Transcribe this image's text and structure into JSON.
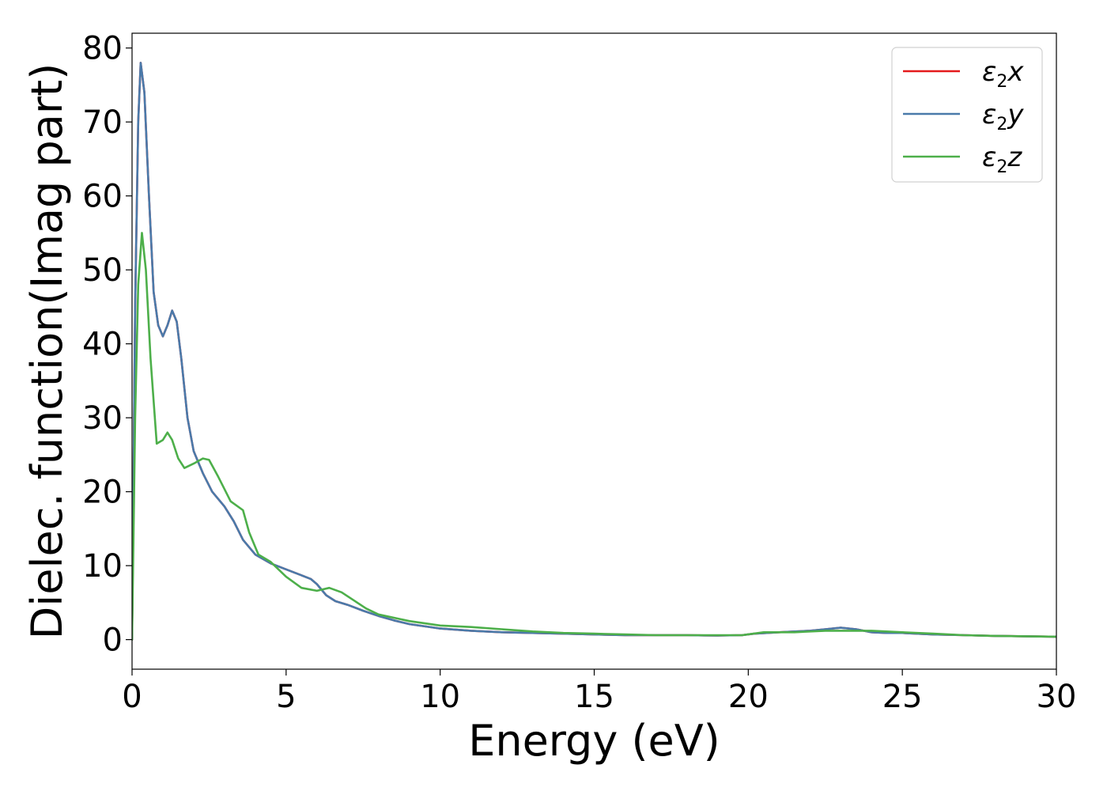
{
  "chart_data": {
    "type": "line",
    "title": "",
    "xlabel": "Energy (eV)",
    "ylabel": "Dielec. function(Imag part)",
    "xlim": [
      0,
      30
    ],
    "ylim": [
      -4,
      82
    ],
    "xticks": [
      0,
      5,
      10,
      15,
      20,
      25,
      30
    ],
    "yticks": [
      0,
      10,
      20,
      30,
      40,
      50,
      60,
      70,
      80
    ],
    "grid": false,
    "legend_position": "top-right",
    "series": [
      {
        "name": "ε2x",
        "symbol": "ε",
        "sub": "2",
        "suffix": "x",
        "color": "#e41a1c",
        "x": [
          0,
          0.1,
          0.2,
          0.28,
          0.4,
          0.55,
          0.7,
          0.85,
          1.0,
          1.15,
          1.3,
          1.45,
          1.6,
          1.8,
          2.0,
          2.3,
          2.6,
          3.0,
          3.3,
          3.6,
          4.0,
          4.5,
          5.0,
          5.5,
          5.8,
          6.0,
          6.3,
          6.6,
          7.0,
          7.5,
          8.0,
          8.5,
          9.0,
          10.0,
          11.0,
          12.0,
          13.0,
          14.0,
          15.0,
          16.0,
          17.0,
          18.0,
          19.0,
          19.8,
          20.2,
          21.0,
          22.0,
          22.5,
          23.0,
          23.5,
          24.0,
          24.5,
          25.0,
          26.0,
          27.0,
          28.0,
          29.0,
          30.0
        ],
        "y": [
          0,
          45,
          70,
          78,
          74,
          60,
          47,
          42.5,
          41,
          42.5,
          44.5,
          43,
          38,
          30,
          25.5,
          22.5,
          20,
          18,
          16,
          13.5,
          11.5,
          10.3,
          9.5,
          8.7,
          8.2,
          7.5,
          6,
          5.2,
          4.7,
          3.9,
          3.2,
          2.6,
          2.1,
          1.5,
          1.2,
          1.0,
          0.9,
          0.8,
          0.7,
          0.6,
          0.6,
          0.6,
          0.55,
          0.6,
          0.8,
          1.0,
          1.2,
          1.4,
          1.6,
          1.4,
          1.0,
          0.9,
          0.9,
          0.7,
          0.6,
          0.5,
          0.45,
          0.4
        ]
      },
      {
        "name": "ε2y",
        "symbol": "ε",
        "sub": "2",
        "suffix": "y",
        "color": "#4a7aaa",
        "x": [
          0,
          0.1,
          0.2,
          0.28,
          0.4,
          0.55,
          0.7,
          0.85,
          1.0,
          1.15,
          1.3,
          1.45,
          1.6,
          1.8,
          2.0,
          2.3,
          2.6,
          3.0,
          3.3,
          3.6,
          4.0,
          4.5,
          5.0,
          5.5,
          5.8,
          6.0,
          6.3,
          6.6,
          7.0,
          7.5,
          8.0,
          8.5,
          9.0,
          10.0,
          11.0,
          12.0,
          13.0,
          14.0,
          15.0,
          16.0,
          17.0,
          18.0,
          19.0,
          19.8,
          20.2,
          21.0,
          22.0,
          22.5,
          23.0,
          23.5,
          24.0,
          24.5,
          25.0,
          26.0,
          27.0,
          28.0,
          29.0,
          30.0
        ],
        "y": [
          0,
          45,
          70,
          78,
          74,
          60,
          47,
          42.5,
          41,
          42.5,
          44.5,
          43,
          38,
          30,
          25.5,
          22.5,
          20,
          18,
          16,
          13.5,
          11.5,
          10.3,
          9.5,
          8.7,
          8.2,
          7.5,
          6,
          5.2,
          4.7,
          3.9,
          3.2,
          2.6,
          2.1,
          1.5,
          1.2,
          1.0,
          0.9,
          0.8,
          0.7,
          0.6,
          0.6,
          0.6,
          0.55,
          0.6,
          0.8,
          1.0,
          1.2,
          1.4,
          1.6,
          1.4,
          1.0,
          0.9,
          0.9,
          0.7,
          0.6,
          0.5,
          0.45,
          0.4
        ]
      },
      {
        "name": "ε2z",
        "symbol": "ε",
        "sub": "2",
        "suffix": "z",
        "color": "#4daf4a",
        "x": [
          0,
          0.1,
          0.2,
          0.32,
          0.45,
          0.6,
          0.8,
          1.0,
          1.15,
          1.3,
          1.5,
          1.7,
          2.0,
          2.3,
          2.5,
          2.8,
          3.2,
          3.6,
          3.8,
          4.1,
          4.5,
          5.0,
          5.5,
          6.0,
          6.4,
          6.8,
          7.2,
          7.6,
          8.0,
          9.0,
          10.0,
          11.0,
          12.0,
          13.0,
          14.0,
          15.0,
          16.0,
          17.0,
          18.0,
          19.0,
          19.8,
          20.5,
          21.5,
          22.5,
          23.0,
          24.0,
          25.0,
          26.0,
          27.0,
          28.0,
          29.0,
          30.0
        ],
        "y": [
          0,
          30,
          48,
          55,
          50,
          38,
          26.5,
          27,
          28,
          27,
          24.5,
          23.2,
          23.8,
          24.5,
          24.3,
          22,
          18.7,
          17.5,
          14.5,
          11.5,
          10.5,
          8.5,
          7.0,
          6.6,
          7.0,
          6.4,
          5.3,
          4.2,
          3.4,
          2.5,
          1.9,
          1.7,
          1.4,
          1.1,
          0.9,
          0.8,
          0.7,
          0.6,
          0.6,
          0.6,
          0.6,
          1.0,
          1.0,
          1.2,
          1.2,
          1.2,
          1.0,
          0.8,
          0.6,
          0.5,
          0.45,
          0.4
        ]
      }
    ]
  }
}
